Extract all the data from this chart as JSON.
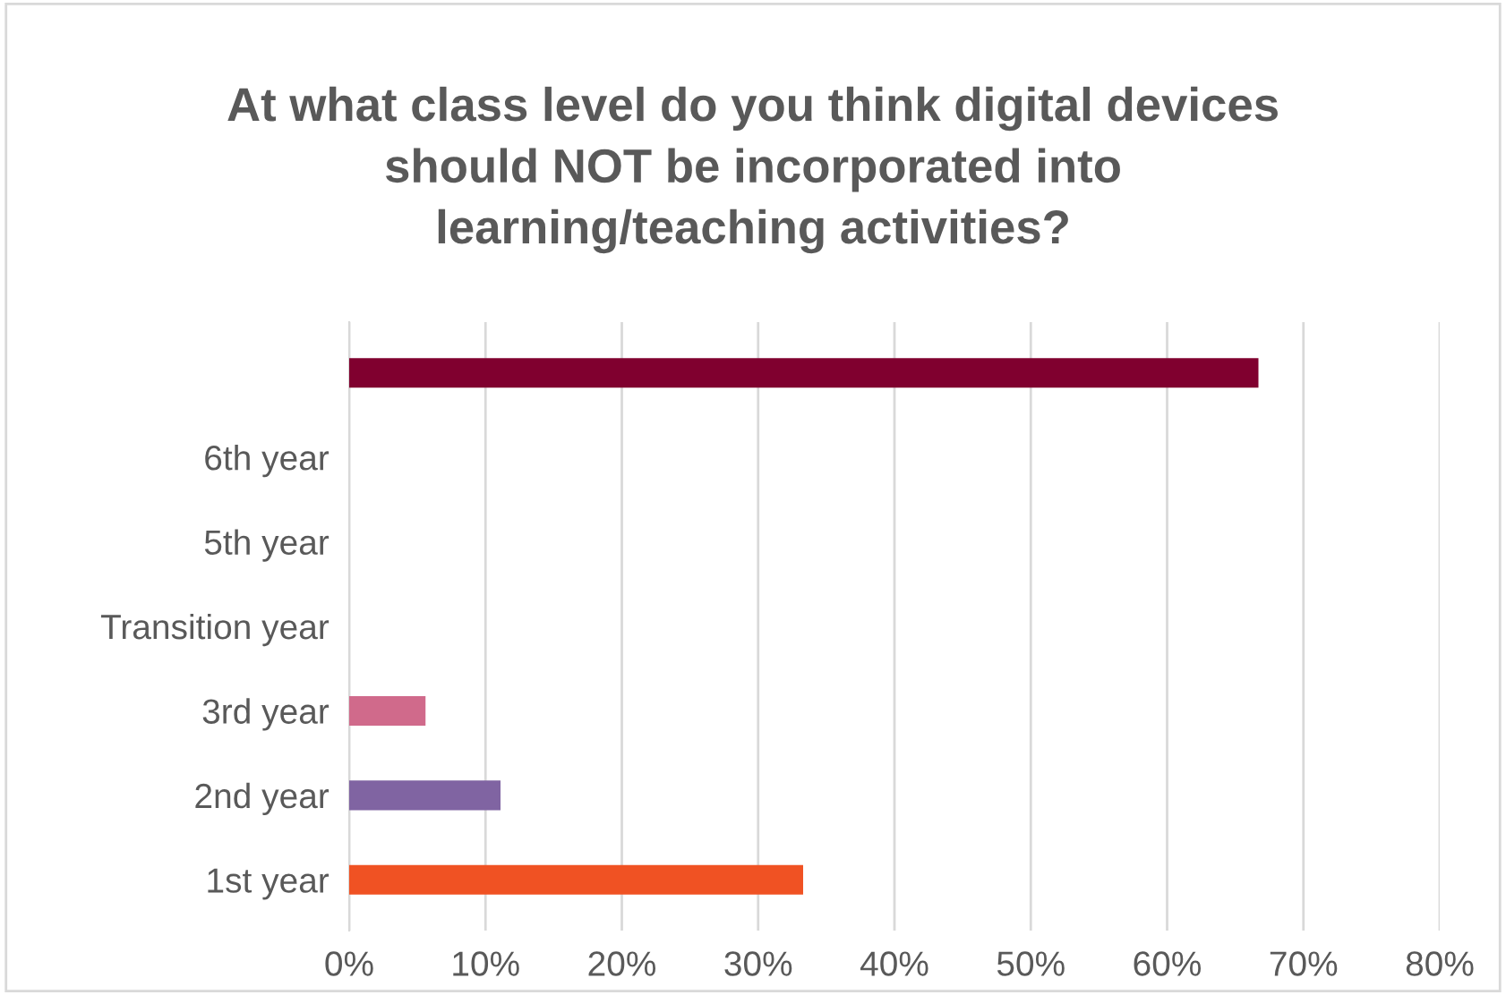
{
  "chart_data": {
    "type": "bar",
    "orientation": "horizontal",
    "title": "At what class level do you think digital devices\nshould NOT be incorporated into\nlearning/teaching activities?",
    "categories": [
      null,
      "6th year",
      "5th year",
      "Transition year",
      "3rd year",
      "2nd year",
      "1st year"
    ],
    "values": [
      66.7,
      0,
      0,
      0,
      5.6,
      11.1,
      33.3
    ],
    "colors": [
      "#80002f",
      "#80002f",
      "#80002f",
      "#80002f",
      "#d06a8b",
      "#8064a2",
      "#f05223"
    ],
    "xlim": [
      0,
      80
    ],
    "xticks": [
      {
        "value": 0,
        "label": "0%"
      },
      {
        "value": 10,
        "label": "10%"
      },
      {
        "value": 20,
        "label": "20%"
      },
      {
        "value": 30,
        "label": "30%"
      },
      {
        "value": 40,
        "label": "40%"
      },
      {
        "value": 50,
        "label": "50%"
      },
      {
        "value": 60,
        "label": "60%"
      },
      {
        "value": 70,
        "label": "70%"
      },
      {
        "value": 80,
        "label": "80%"
      }
    ],
    "grid": "x",
    "legend": false
  }
}
